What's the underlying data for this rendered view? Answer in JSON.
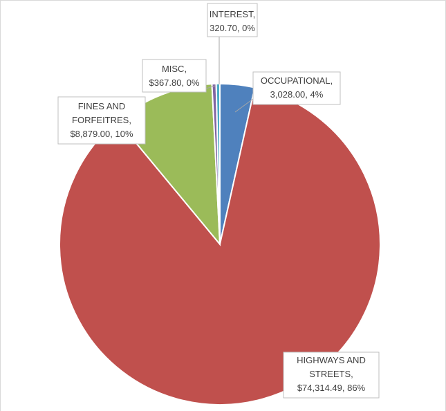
{
  "chart_data": {
    "type": "pie",
    "categories": [
      "OCCUPATIONAL",
      "HIGHWAYS AND STREETS",
      "FINES AND FORFEITRES",
      "MISC",
      "INTEREST"
    ],
    "values": [
      3028.0,
      74314.49,
      8879.0,
      367.8,
      320.7
    ],
    "value_labels": [
      "3,028.00",
      "$74,314.49",
      "$8,879.00",
      "$367.80",
      "320.70"
    ],
    "percent_labels": [
      "4%",
      "86%",
      "10%",
      "0%",
      "0%"
    ],
    "colors": [
      "#4f81bd",
      "#c0504d",
      "#9bbb59",
      "#8064a2",
      "#4bacc6"
    ]
  }
}
